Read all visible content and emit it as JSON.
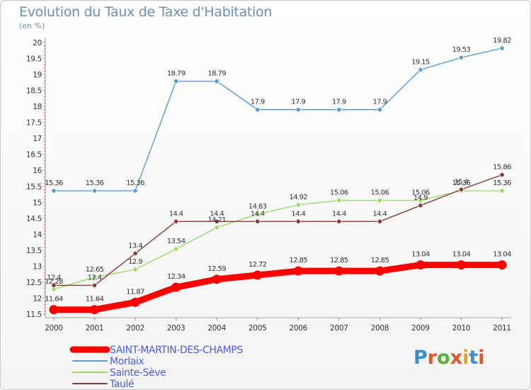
{
  "header": {
    "title": "Evolution du Taux de Taxe d'Habitation",
    "subtitle": "(en %)"
  },
  "brand": {
    "text": "Proxiti",
    "letter_colors": [
      "#3a8fd0",
      "#e0552b",
      "#58b03a",
      "#e0552b",
      "#f0a020",
      "#3a8fd0",
      "#e0552b"
    ]
  },
  "chart_data": {
    "type": "line",
    "title": "Evolution du Taux de Taxe d'Habitation",
    "subtitle": "(en %)",
    "xlabel": "",
    "ylabel": "",
    "categories": [
      "2000",
      "2001",
      "2002",
      "2003",
      "2004",
      "2005",
      "2006",
      "2007",
      "2008",
      "2009",
      "2010",
      "2011"
    ],
    "ylim": [
      11.5,
      20
    ],
    "yticks": [
      "11.5",
      "12",
      "12.5",
      "13",
      "13.5",
      "14",
      "14.5",
      "15",
      "15.5",
      "16",
      "16.5",
      "17",
      "17.5",
      "18",
      "18.5",
      "19",
      "19.5",
      "20"
    ],
    "grid": false,
    "legend_position": "bottom-left",
    "series": [
      {
        "name": "SAINT-MARTIN-DES-CHAMPS",
        "color": "#ff0000",
        "width": "thick",
        "values": [
          11.64,
          11.64,
          11.87,
          12.34,
          12.59,
          12.72,
          12.85,
          12.85,
          12.85,
          13.04,
          13.04,
          13.04
        ],
        "labels": [
          "11.64",
          "11.64",
          "11.87",
          "12.34",
          "12.59",
          "12.72",
          "12.85",
          "12.85",
          "12.85",
          "13.04",
          "13.04",
          "13.04"
        ]
      },
      {
        "name": "Morlaix",
        "color": "#5b9bd5",
        "width": "thin",
        "values": [
          15.36,
          15.36,
          15.36,
          18.79,
          18.79,
          17.9,
          17.9,
          17.9,
          17.9,
          19.15,
          19.53,
          19.82
        ],
        "labels": [
          "15.36",
          "15.36",
          "15.36",
          "18.79",
          "18.79",
          "17.9",
          "17.9",
          "17.9",
          "17.9",
          "19.15",
          "19.53",
          "19.82"
        ]
      },
      {
        "name": "Sainte-Sève",
        "color": "#99dd66",
        "width": "thin",
        "values": [
          12.28,
          12.65,
          12.9,
          13.54,
          14.21,
          14.63,
          14.92,
          15.06,
          15.06,
          15.06,
          15.36,
          15.36
        ],
        "labels": [
          "12.28",
          "12.65",
          "12.9",
          "13.54",
          "14.21",
          "14.63",
          "14.92",
          "15.06",
          "15.06",
          "15.06",
          "15.36",
          "15.36"
        ]
      },
      {
        "name": "Taulé",
        "color": "#8b3a3a",
        "width": "thin",
        "values": [
          12.4,
          12.4,
          13.4,
          14.4,
          14.4,
          14.4,
          14.4,
          14.4,
          14.4,
          14.9,
          15.4,
          15.86
        ],
        "labels": [
          "12.4",
          "12.4",
          "13.4",
          "14.4",
          "14.4",
          "14.4",
          "14.4",
          "14.4",
          "14.4",
          "14.9",
          "15.4",
          "15.86"
        ]
      }
    ]
  }
}
